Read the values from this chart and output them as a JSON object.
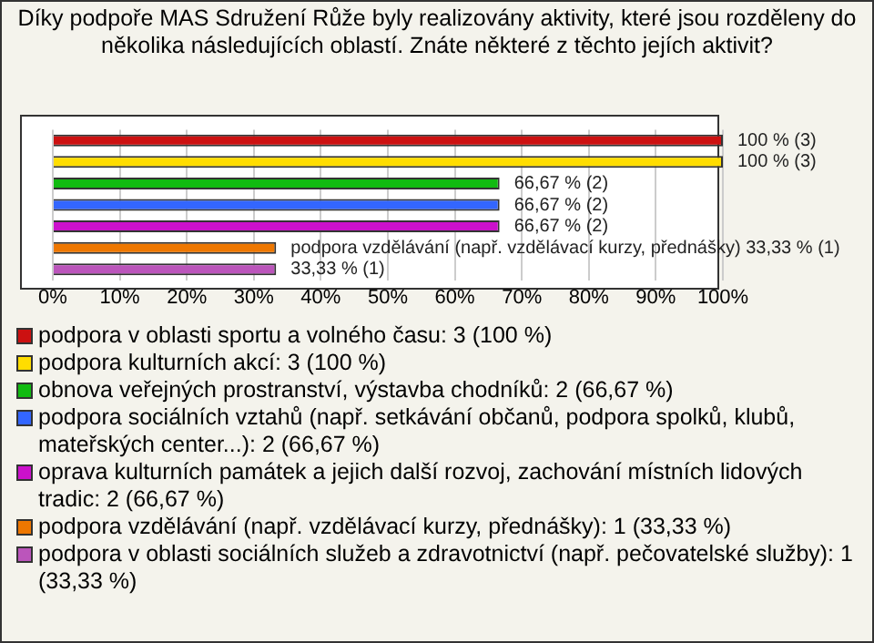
{
  "chart_data": {
    "type": "bar",
    "orientation": "horizontal",
    "title": "Díky podpoře MAS Sdružení Růže byly realizovány aktivity, které jsou rozděleny do několika následujících oblastí. Znáte některé z těchto jejích aktivit?",
    "categories": [
      null,
      null,
      null,
      null,
      null,
      null,
      null
    ],
    "series": [
      {
        "name": "podpora v oblasti sportu a volného času: 3 (100 %)",
        "color": "#cc1111",
        "values": [
          100,
          null,
          null,
          null,
          null,
          null,
          null
        ],
        "value_labels": [
          "100 % (3)",
          null,
          null,
          null,
          null,
          null,
          null
        ]
      },
      {
        "name": "podpora kulturních akcí: 3 (100 %)",
        "color": "#ffdd00",
        "values": [
          null,
          100,
          null,
          null,
          null,
          null,
          null
        ],
        "value_labels": [
          null,
          "100 % (3)",
          null,
          null,
          null,
          null,
          null
        ]
      },
      {
        "name": "obnova veřejných prostranství, výstavba chodníků: 2 (66,67 %)",
        "color": "#11bb11",
        "values": [
          null,
          null,
          66.67,
          null,
          null,
          null,
          null
        ],
        "value_labels": [
          null,
          null,
          "66,67 % (2)",
          null,
          null,
          null,
          null
        ]
      },
      {
        "name": "podpora sociálních vztahů (např. setkávání občanů, podpora spolků, klubů, mateřských center...): 2 (66,67 %)",
        "color": "#3366ff",
        "values": [
          null,
          null,
          null,
          66.67,
          null,
          null,
          null
        ],
        "value_labels": [
          null,
          null,
          null,
          "66,67 % (2)",
          null,
          null,
          null
        ]
      },
      {
        "name": "oprava kulturních památek a jejich další rozvoj, zachování místních lidových tradic: 2 (66,67 %)",
        "color": "#cc11cc",
        "values": [
          null,
          null,
          null,
          null,
          66.67,
          null,
          null
        ],
        "value_labels": [
          null,
          null,
          null,
          null,
          "66,67 % (2)",
          null,
          null
        ]
      },
      {
        "name": "podpora vzdělávání (např. vzdělávací kurzy, přednášky): 1 (33,33 %)",
        "color": "#ee7700",
        "values": [
          null,
          null,
          null,
          null,
          null,
          33.33,
          null
        ],
        "value_labels": [
          null,
          null,
          null,
          null,
          null,
          "podpora vzdělávání (např. vzdělávací kurzy, přednášky) 33,33 % (1)",
          null
        ]
      },
      {
        "name": "podpora v oblasti sociálních služeb a zdravotnictví (např. pečovatelské služby): 1 (33,33 %)",
        "color": "#bb55bb",
        "values": [
          null,
          null,
          null,
          null,
          null,
          null,
          33.33
        ],
        "value_labels": [
          null,
          null,
          null,
          null,
          null,
          null,
          "33,33 % (1)"
        ]
      }
    ],
    "xlim": [
      0,
      100
    ],
    "xticks": [
      {
        "value": 0,
        "label": "0%"
      },
      {
        "value": 10,
        "label": "10%"
      },
      {
        "value": 20,
        "label": "20%"
      },
      {
        "value": 30,
        "label": "30%"
      },
      {
        "value": 40,
        "label": "40%"
      },
      {
        "value": 50,
        "label": "50%"
      },
      {
        "value": 60,
        "label": "60%"
      },
      {
        "value": 70,
        "label": "70%"
      },
      {
        "value": 80,
        "label": "80%"
      },
      {
        "value": 90,
        "label": "90%"
      },
      {
        "value": 100,
        "label": "100%"
      }
    ],
    "grid": "x",
    "legend": "bottom"
  }
}
